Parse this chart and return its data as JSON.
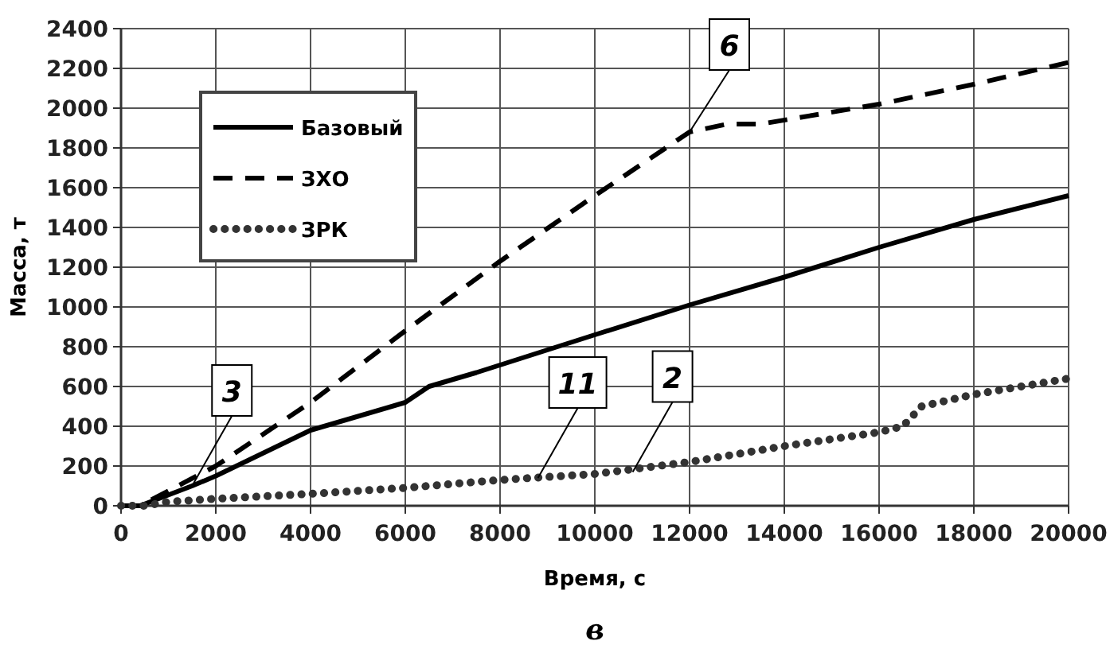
{
  "chart_data": {
    "type": "line",
    "xlabel": "Время, с",
    "ylabel": "Масса, т",
    "xlim": [
      0,
      20000
    ],
    "xticks": [
      0,
      2000,
      4000,
      6000,
      8000,
      10000,
      12000,
      14000,
      16000,
      18000,
      20000
    ],
    "ylim": [
      0,
      2400
    ],
    "yticks": [
      0,
      200,
      400,
      600,
      800,
      1000,
      1200,
      1400,
      1600,
      1800,
      2000,
      2200,
      2400
    ],
    "grid": true,
    "legend": "top left",
    "marker": "none",
    "series": [
      {
        "name": "Базовый",
        "color": "#000000",
        "line_style": "solid",
        "x": [
          0,
          400,
          1500,
          2000,
          4000,
          6000,
          6500,
          7500,
          10000,
          12000,
          14000,
          16000,
          18000,
          20000
        ],
        "values": [
          0,
          0,
          100,
          150,
          380,
          520,
          600,
          670,
          860,
          1010,
          1150,
          1300,
          1440,
          1560
        ]
      },
      {
        "name": "ЗХО",
        "color": "#000000",
        "line_style": "dashed",
        "x": [
          0,
          400,
          2000,
          4000,
          6000,
          8000,
          10000,
          12000,
          12800,
          13500,
          16000,
          18000,
          20000
        ],
        "values": [
          0,
          0,
          200,
          520,
          880,
          1230,
          1560,
          1880,
          1920,
          1920,
          2020,
          2120,
          2230
        ]
      },
      {
        "name": "ЗРК",
        "color": "#333333",
        "line_style": "dotted",
        "x": [
          0,
          500,
          1000,
          2000,
          4000,
          6000,
          8000,
          10000,
          12000,
          14000,
          16000,
          16500,
          16900,
          18000,
          20000
        ],
        "values": [
          0,
          0,
          20,
          35,
          60,
          90,
          130,
          160,
          220,
          300,
          370,
          400,
          500,
          560,
          640
        ]
      }
    ],
    "annotations": [
      {
        "text": "6",
        "x": 12000,
        "y": 1880
      },
      {
        "text": "2",
        "x": 10800,
        "y": 170
      },
      {
        "text": "11",
        "x": 8800,
        "y": 140
      },
      {
        "text": "3",
        "x": 1500,
        "y": 100
      },
      "в"
    ]
  }
}
